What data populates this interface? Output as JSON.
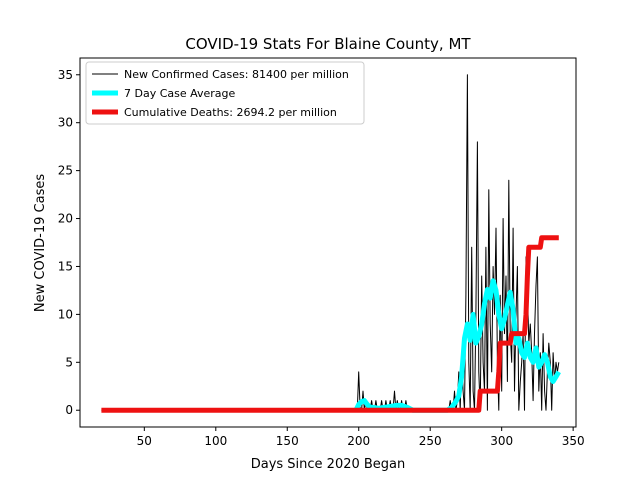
{
  "chart_data": {
    "type": "line",
    "title": "COVID-19 Stats For Blaine County, MT",
    "xlabel": "Days Since 2020 Began",
    "ylabel": "New COVID-19 Cases",
    "xlim": [
      5,
      352
    ],
    "ylim": [
      -1.75,
      36.75
    ],
    "xticks": [
      50,
      100,
      150,
      200,
      250,
      300,
      350
    ],
    "yticks": [
      0,
      5,
      10,
      15,
      20,
      25,
      30,
      35
    ],
    "grid": false,
    "legend_position": "top-left",
    "series": [
      {
        "name": "New Confirmed Cases: 81400 per million",
        "color": "#000000",
        "x": [
          20,
          40,
          60,
          80,
          100,
          120,
          140,
          160,
          180,
          198,
          199,
          200,
          201,
          202,
          203,
          204,
          205,
          206,
          207,
          208,
          209,
          210,
          211,
          212,
          213,
          214,
          215,
          216,
          217,
          218,
          219,
          220,
          221,
          222,
          223,
          224,
          225,
          226,
          227,
          228,
          229,
          230,
          231,
          232,
          233,
          234,
          235,
          236,
          237,
          238,
          239,
          240,
          245,
          250,
          255,
          258,
          259,
          260,
          261,
          262,
          263,
          264,
          265,
          266,
          267,
          268,
          269,
          270,
          271,
          272,
          273,
          274,
          275,
          276,
          277,
          278,
          279,
          280,
          281,
          282,
          283,
          284,
          285,
          286,
          287,
          288,
          289,
          290,
          291,
          292,
          293,
          294,
          295,
          296,
          297,
          298,
          299,
          300,
          301,
          302,
          303,
          304,
          305,
          306,
          307,
          308,
          309,
          310,
          311,
          312,
          313,
          314,
          315,
          316,
          317,
          318,
          319,
          320,
          321,
          322,
          323,
          324,
          325,
          326,
          327,
          328,
          329,
          330,
          331,
          332,
          333,
          334,
          335,
          336,
          337,
          338,
          339,
          340
        ],
        "values": [
          0,
          0,
          0,
          0,
          0,
          0,
          0,
          0,
          0,
          0,
          0,
          4,
          0,
          0,
          2,
          0,
          1,
          0,
          0,
          0,
          1,
          0,
          0,
          1,
          0,
          0,
          0,
          1,
          0,
          0,
          1,
          0,
          0,
          1,
          0,
          0,
          2,
          0,
          1,
          0,
          0,
          1,
          0,
          0,
          1,
          0,
          0,
          0,
          0,
          0,
          0,
          0,
          0,
          0,
          0,
          0,
          0,
          0,
          0,
          0,
          0,
          1,
          0,
          0,
          2,
          0,
          1,
          4,
          0,
          6,
          2,
          0,
          12,
          35,
          5,
          0,
          17,
          2,
          0,
          10,
          28,
          4,
          0,
          14,
          5,
          2,
          17,
          0,
          23,
          9,
          4,
          15,
          10,
          19,
          5,
          0,
          12,
          2,
          20,
          8,
          14,
          3,
          24,
          8,
          5,
          19,
          2,
          10,
          15,
          0,
          3,
          5,
          8,
          0,
          16,
          13,
          7,
          9,
          6,
          1,
          8,
          13,
          16,
          2,
          6,
          0,
          8,
          2,
          0,
          4,
          7,
          5,
          0,
          6,
          3,
          5,
          4,
          5
        ]
      },
      {
        "name": "7 Day Case Average",
        "color": "#00ffff",
        "x": [
          198,
          200,
          202,
          204,
          206,
          208,
          210,
          214,
          218,
          222,
          226,
          230,
          234,
          238,
          262,
          265,
          268,
          270,
          272,
          274,
          276,
          278,
          280,
          282,
          284,
          286,
          288,
          290,
          292,
          294,
          296,
          298,
          300,
          302,
          304,
          306,
          308,
          310,
          312,
          314,
          316,
          318,
          320,
          322,
          324,
          326,
          328,
          330,
          332,
          334,
          336,
          338,
          340
        ],
        "values": [
          0,
          0.6,
          0.9,
          1.0,
          0.6,
          0.3,
          0.3,
          0.2,
          0.3,
          0.4,
          0.5,
          0.5,
          0.3,
          0,
          0,
          0.3,
          0.9,
          1.5,
          3.5,
          7.5,
          9.0,
          7.3,
          10.0,
          7.0,
          7.7,
          9.0,
          11.1,
          12.6,
          11.7,
          13.5,
          12.5,
          10.0,
          8.5,
          9.5,
          11.0,
          12.3,
          10.5,
          7.0,
          7.5,
          6.0,
          5.5,
          7.0,
          5.5,
          5.0,
          6.5,
          4.5,
          5.0,
          5.8,
          5.0,
          3.5,
          3.0,
          3.5,
          4.0
        ]
      },
      {
        "name": "Cumulative Deaths: 2694.2 per million",
        "color": "#ee1111",
        "x": [
          20,
          284,
          285,
          297,
          298,
          299,
          306,
          307,
          316,
          317,
          318,
          319,
          327,
          328,
          340
        ],
        "values": [
          0,
          0,
          2,
          2,
          4,
          7,
          7,
          8,
          8,
          10,
          14,
          17,
          17,
          18,
          18
        ]
      }
    ]
  }
}
